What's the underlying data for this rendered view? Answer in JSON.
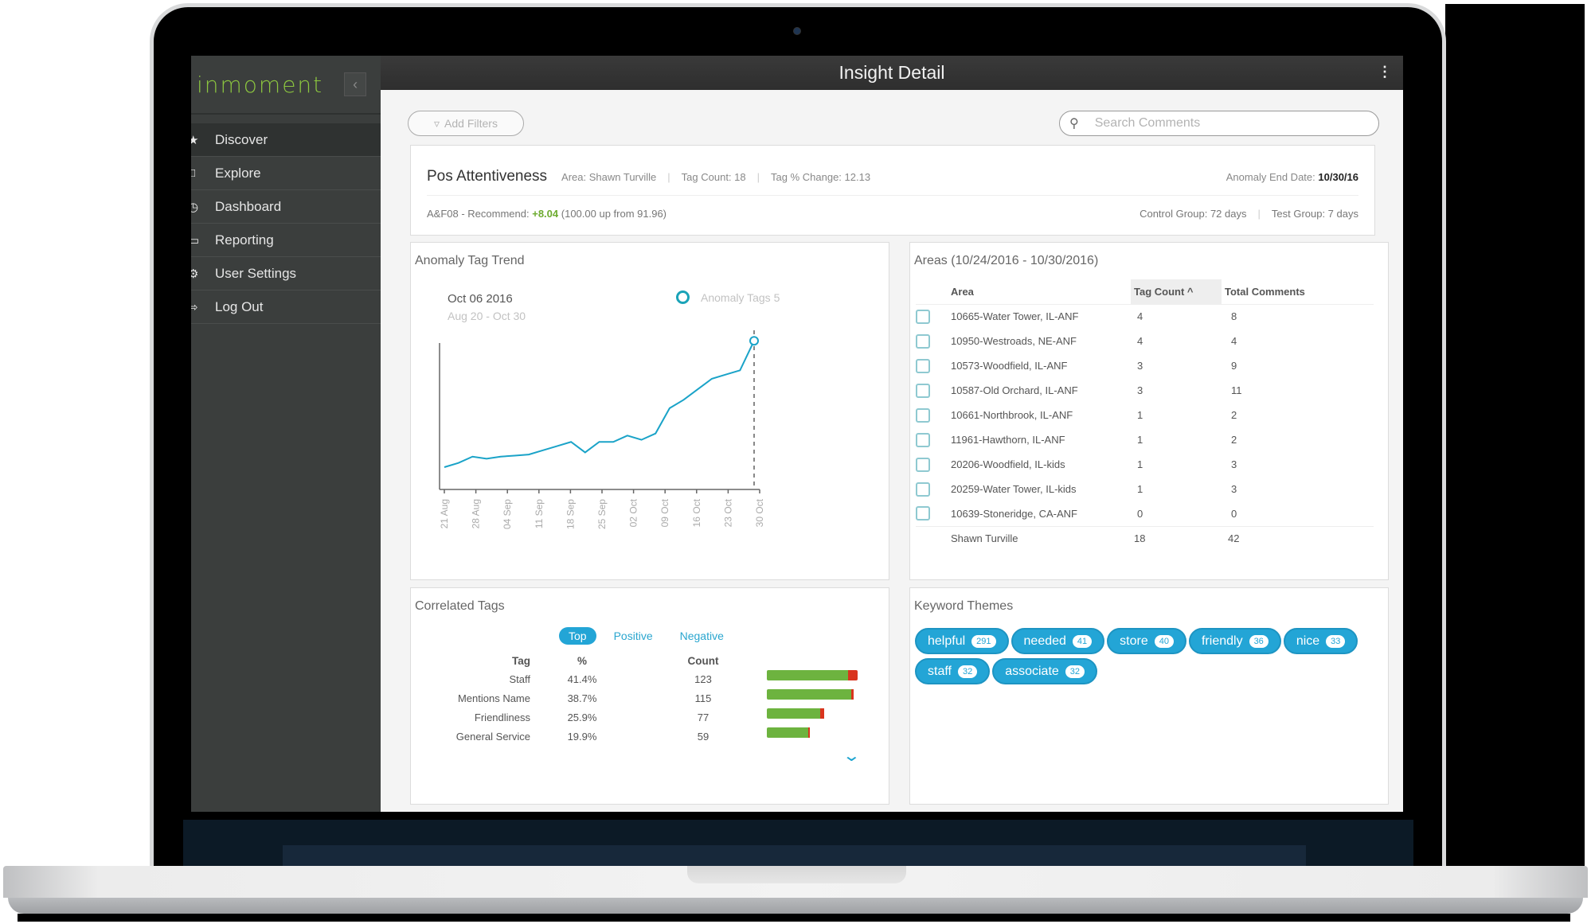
{
  "app": {
    "logo": "inmoment",
    "collapse_icon": "chevron-left-icon",
    "title": "Insight Detail",
    "more_icon": "vertical-ellipsis-icon"
  },
  "sidebar": {
    "items": [
      {
        "label": "Discover",
        "icon": "star-icon",
        "active": true
      },
      {
        "label": "Explore",
        "icon": "speech-bubble-icon"
      },
      {
        "label": "Dashboard",
        "icon": "gauge-icon"
      },
      {
        "label": "Reporting",
        "icon": "monitor-icon"
      },
      {
        "label": "User Settings",
        "icon": "gear-icon"
      },
      {
        "label": "Log Out",
        "icon": "logout-icon"
      }
    ]
  },
  "toolbar": {
    "add_filters": "Add Filters",
    "search_placeholder": "Search Comments"
  },
  "summary": {
    "name": "Pos Attentiveness",
    "area": "Area: Shawn Turville",
    "tag_count": "Tag Count: 18",
    "tag_change": "Tag % Change: 12.13",
    "anomaly_end_label": "Anomaly End Date:",
    "anomaly_end_value": "10/30/16",
    "metric_prefix": "A&F08 - Recommend:",
    "metric_change": "+8.04",
    "metric_detail": "(100.00 up from 91.96)",
    "control_group": "Control Group: 72 days",
    "test_group": "Test Group: 7 days"
  },
  "trend": {
    "title": "Anomaly Tag Trend",
    "hover_date": "Oct 06 2016",
    "range": "Aug 20 - Oct 30",
    "legend": "Anomaly Tags 5"
  },
  "chart_data": {
    "type": "line",
    "title": "Anomaly Tag Trend",
    "subtitle": "Aug 20 - Oct 30",
    "series": [
      {
        "name": "Anomaly Tags",
        "color": "#1aa3c8",
        "values": [
          1.0,
          1.2,
          1.5,
          1.4,
          1.5,
          1.55,
          1.6,
          1.8,
          2.0,
          2.2,
          1.7,
          2.2,
          2.2,
          2.5,
          2.3,
          2.6,
          3.8,
          4.2,
          4.7,
          5.2,
          5.4,
          5.6,
          7.0
        ]
      }
    ],
    "x_ticks": [
      "21 Aug",
      "28 Aug",
      "04 Sep",
      "11 Sep",
      "18 Sep",
      "25 Sep",
      "02 Oct",
      "09 Oct",
      "16 Oct",
      "23 Oct",
      "30 Oct"
    ],
    "highlight": {
      "label": "Anomaly Tags 5",
      "date": "Oct 06 2016"
    },
    "xlabel": "",
    "ylabel": "",
    "grid": false
  },
  "areas": {
    "title": "Areas (10/24/2016 - 10/30/2016)",
    "columns": [
      "Area",
      "Tag Count ^",
      "Total Comments"
    ],
    "rows": [
      {
        "area": "10665-Water Tower, IL-ANF",
        "tag_count": "4",
        "total": "8"
      },
      {
        "area": "10950-Westroads, NE-ANF",
        "tag_count": "4",
        "total": "4"
      },
      {
        "area": "10573-Woodfield, IL-ANF",
        "tag_count": "3",
        "total": "9"
      },
      {
        "area": "10587-Old Orchard, IL-ANF",
        "tag_count": "3",
        "total": "11"
      },
      {
        "area": "10661-Northbrook, IL-ANF",
        "tag_count": "1",
        "total": "2"
      },
      {
        "area": "11961-Hawthorn, IL-ANF",
        "tag_count": "1",
        "total": "2"
      },
      {
        "area": "20206-Woodfield, IL-kids",
        "tag_count": "1",
        "total": "3"
      },
      {
        "area": "20259-Water Tower, IL-kids",
        "tag_count": "1",
        "total": "3"
      },
      {
        "area": "10639-Stoneridge, CA-ANF",
        "tag_count": "0",
        "total": "0"
      }
    ],
    "total": {
      "area": "Shawn Turville",
      "tag_count": "18",
      "total": "42"
    }
  },
  "correlated": {
    "title": "Correlated Tags",
    "tabs": [
      "Top",
      "Positive",
      "Negative"
    ],
    "columns": [
      "Tag",
      "%",
      "Count"
    ],
    "rows": [
      {
        "tag": "Staff",
        "pct": "41.4%",
        "count": "123",
        "green": 102,
        "red": 12
      },
      {
        "tag": "Mentions Name",
        "pct": "38.7%",
        "count": "115",
        "green": 106,
        "red": 3
      },
      {
        "tag": "Friendliness",
        "pct": "25.9%",
        "count": "77",
        "green": 67,
        "red": 5
      },
      {
        "tag": "General Service",
        "pct": "19.9%",
        "count": "59",
        "green": 52,
        "red": 2
      }
    ],
    "expand_icon": "chevron-down-icon"
  },
  "keywords": {
    "title": "Keyword Themes",
    "items": [
      {
        "word": "helpful",
        "count": "291"
      },
      {
        "word": "needed",
        "count": "41"
      },
      {
        "word": "store",
        "count": "40"
      },
      {
        "word": "friendly",
        "count": "36"
      },
      {
        "word": "nice",
        "count": "33"
      },
      {
        "word": "staff",
        "count": "32"
      },
      {
        "word": "associate",
        "count": "32"
      }
    ]
  }
}
